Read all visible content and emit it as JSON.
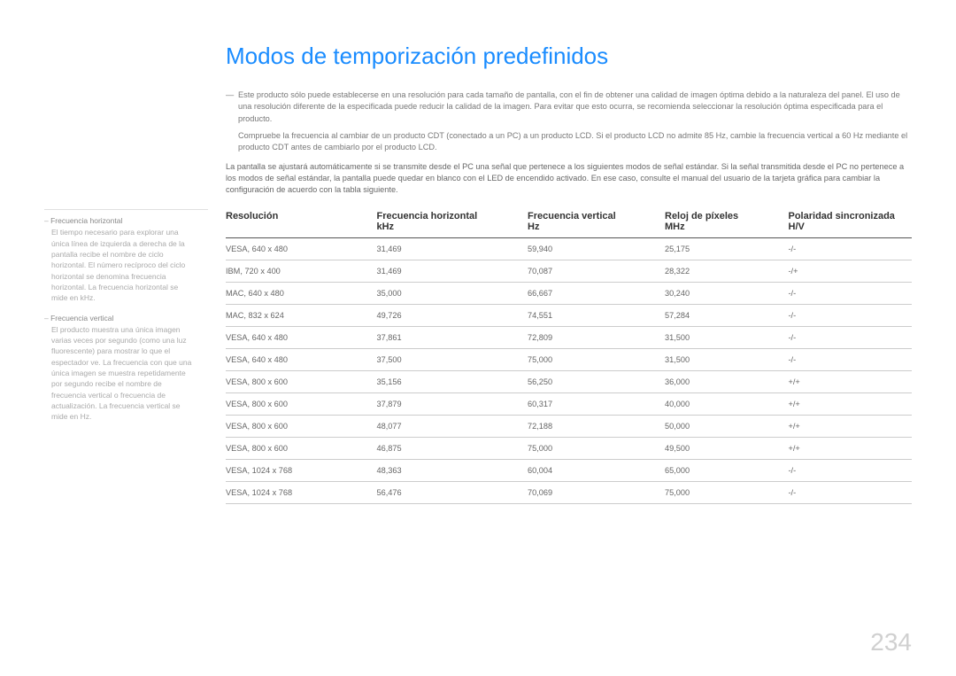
{
  "title": "Modos de temporización predefinidos",
  "notes": [
    "Este producto sólo puede establecerse en una resolución para cada tamaño de pantalla, con el fin de obtener una calidad de imagen óptima debido a la naturaleza del panel. El uso de una resolución diferente de la especificada puede reducir la calidad de la imagen. Para evitar que esto ocurra, se recomienda seleccionar la resolución óptima especificada para el producto.",
    "Compruebe la frecuencia al cambiar de un producto CDT (conectado a un PC) a un producto LCD. Si el producto LCD no admite 85 Hz, cambie la frecuencia vertical a 60 Hz mediante el producto CDT antes de cambiarlo por el producto LCD."
  ],
  "intro": "La pantalla se ajustará automáticamente si se transmite desde el PC una señal que pertenece a los siguientes modos de señal estándar. Si la señal transmitida desde el PC no pertenece a los modos de señal estándar, la pantalla puede quedar en blanco con el LED de encendido activado. En ese caso, consulte el manual del usuario de la tarjeta gráfica para cambiar la configuración de acuerdo con la tabla siguiente.",
  "sidebar": [
    {
      "term": "Frecuencia horizontal",
      "desc": "El tiempo necesario para explorar una única línea de izquierda a derecha de la pantalla recibe el nombre de ciclo horizontal. El número recíproco del ciclo horizontal se denomina frecuencia horizontal. La frecuencia horizontal se mide en kHz."
    },
    {
      "term": "Frecuencia vertical",
      "desc": "El producto muestra una única imagen varias veces por segundo (como una luz fluorescente) para mostrar lo que el espectador ve. La frecuencia con que una única imagen se muestra repetidamente por segundo recibe el nombre de frecuencia vertical o frecuencia de actualización. La frecuencia vertical se mide en Hz."
    }
  ],
  "table": {
    "headers": [
      "Resolución",
      "Frecuencia horizontal\nkHz",
      "Frecuencia vertical\nHz",
      "Reloj de píxeles\nMHz",
      "Polaridad sincronizada\nH/V"
    ],
    "col_widths": [
      "22%",
      "22%",
      "20%",
      "18%",
      "18%"
    ],
    "rows": [
      [
        "VESA, 640 x 480",
        "31,469",
        "59,940",
        "25,175",
        "-/-"
      ],
      [
        "IBM, 720 x 400",
        "31,469",
        "70,087",
        "28,322",
        "-/+"
      ],
      [
        "MAC, 640 x 480",
        "35,000",
        "66,667",
        "30,240",
        "-/-"
      ],
      [
        "MAC, 832 x 624",
        "49,726",
        "74,551",
        "57,284",
        "-/-"
      ],
      [
        "VESA, 640 x 480",
        "37,861",
        "72,809",
        "31,500",
        "-/-"
      ],
      [
        "VESA, 640 x 480",
        "37,500",
        "75,000",
        "31,500",
        "-/-"
      ],
      [
        "VESA, 800 x 600",
        "35,156",
        "56,250",
        "36,000",
        "+/+"
      ],
      [
        "VESA, 800 x 600",
        "37,879",
        "60,317",
        "40,000",
        "+/+"
      ],
      [
        "VESA, 800 x 600",
        "48,077",
        "72,188",
        "50,000",
        "+/+"
      ],
      [
        "VESA, 800 x 600",
        "46,875",
        "75,000",
        "49,500",
        "+/+"
      ],
      [
        "VESA, 1024 x 768",
        "48,363",
        "60,004",
        "65,000",
        "-/-"
      ],
      [
        "VESA, 1024 x 768",
        "56,476",
        "70,069",
        "75,000",
        "-/-"
      ]
    ]
  },
  "page_number": "234",
  "colors": {
    "title": "#1a8cff",
    "text": "#666",
    "muted": "#999",
    "border": "#ccc",
    "header_border": "#555",
    "page_num": "#d0d0d0"
  }
}
